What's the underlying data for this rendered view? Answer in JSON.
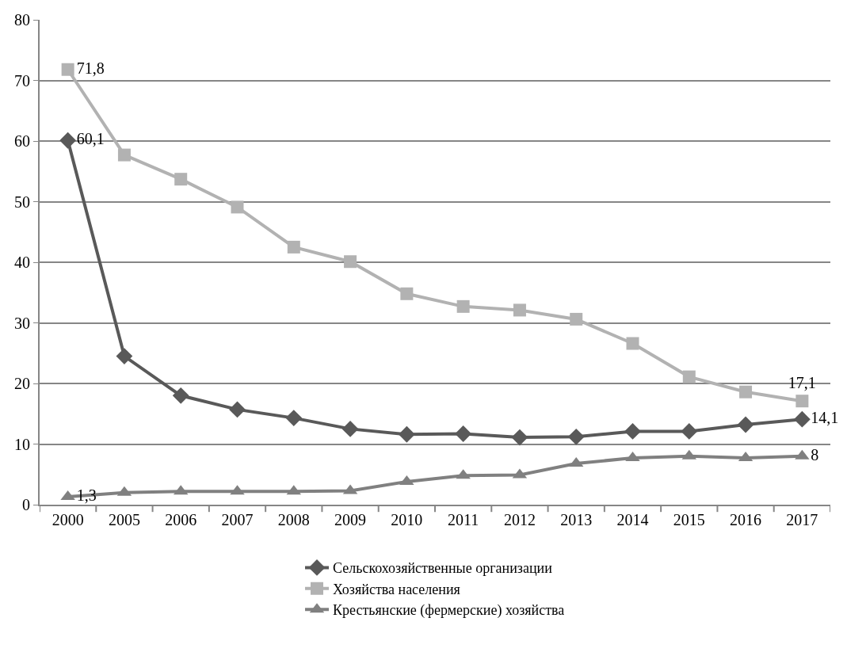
{
  "chart_data": {
    "type": "line",
    "categories": [
      "2000",
      "2005",
      "2006",
      "2007",
      "2008",
      "2009",
      "2010",
      "2011",
      "2012",
      "2013",
      "2014",
      "2015",
      "2016",
      "2017"
    ],
    "series": [
      {
        "name": "Сельскохозяйственные организации",
        "color": "#595959",
        "marker": "diamond",
        "values": [
          60.1,
          24.5,
          18.0,
          15.7,
          14.3,
          12.5,
          11.6,
          11.7,
          11.1,
          11.2,
          12.1,
          12.1,
          13.2,
          14.1
        ],
        "value_labels": [
          "60,1",
          null,
          null,
          null,
          null,
          null,
          null,
          null,
          null,
          null,
          null,
          null,
          null,
          "14,1"
        ]
      },
      {
        "name": "Хозяйства населения",
        "color": "#b2b2b2",
        "marker": "square",
        "values": [
          71.8,
          57.7,
          53.7,
          49.1,
          42.5,
          40.1,
          34.8,
          32.7,
          32.1,
          30.6,
          26.6,
          21.1,
          18.6,
          17.1
        ],
        "value_labels": [
          "71,8",
          null,
          null,
          null,
          null,
          null,
          null,
          null,
          null,
          null,
          null,
          null,
          null,
          "17,1"
        ]
      },
      {
        "name": "Крестьянские (фермерские) хозяйства",
        "color": "#808080",
        "marker": "triangle",
        "values": [
          1.3,
          2.0,
          2.2,
          2.2,
          2.2,
          2.3,
          3.8,
          4.8,
          4.9,
          6.8,
          7.7,
          8.0,
          7.7,
          8
        ],
        "value_labels": [
          "1,3",
          null,
          null,
          null,
          null,
          null,
          null,
          null,
          null,
          null,
          null,
          null,
          null,
          "8"
        ]
      }
    ],
    "ylim": [
      0,
      80
    ],
    "yticks": [
      0,
      10,
      20,
      30,
      40,
      50,
      60,
      70,
      80
    ],
    "grid": "y",
    "legend": "bottom",
    "line_style": "solid"
  }
}
